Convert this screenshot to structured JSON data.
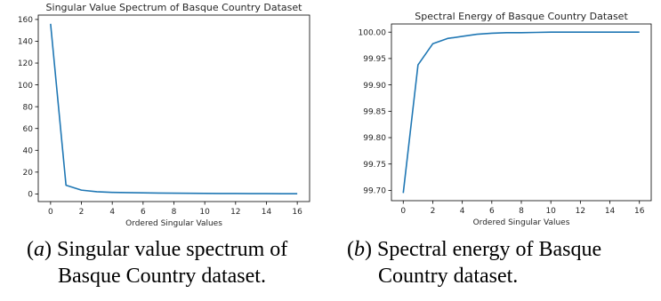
{
  "chart_data": [
    {
      "type": "line",
      "title": "Singular Value Spectrum of Basque Country Dataset",
      "xlabel": "Ordered Singular Values",
      "ylabel": "",
      "x": [
        0,
        1,
        2,
        3,
        4,
        5,
        6,
        7,
        8,
        9,
        10,
        11,
        12,
        13,
        14,
        15,
        16
      ],
      "series": [
        {
          "values": [
            156,
            8,
            3.5,
            2,
            1.4,
            1.2,
            1.0,
            0.8,
            0.7,
            0.6,
            0.5,
            0.4,
            0.35,
            0.3,
            0.25,
            0.2,
            0.15
          ]
        }
      ],
      "xlim": [
        -0.8,
        16.8
      ],
      "ylim": [
        -7,
        164
      ],
      "xticks": [
        0,
        2,
        4,
        6,
        8,
        10,
        12,
        14,
        16
      ],
      "yticks": [
        0,
        20,
        40,
        60,
        80,
        100,
        120,
        140,
        160
      ],
      "ytick_labels": [
        "0",
        "20",
        "40",
        "60",
        "80",
        "100",
        "120",
        "140",
        "160"
      ],
      "grid": false,
      "color": "#1f77b4"
    },
    {
      "type": "line",
      "title": "Spectral Energy of Basque Country Dataset",
      "xlabel": "Ordered Singular Values",
      "ylabel": "",
      "x": [
        0,
        1,
        2,
        3,
        4,
        5,
        6,
        7,
        8,
        9,
        10,
        11,
        12,
        13,
        14,
        15,
        16
      ],
      "series": [
        {
          "values": [
            99.695,
            99.938,
            99.978,
            99.988,
            99.992,
            99.996,
            99.998,
            99.999,
            99.999,
            99.9995,
            100.0,
            100.0,
            100.0,
            100.0,
            100.0,
            100.0,
            100.0
          ]
        }
      ],
      "xlim": [
        -0.8,
        16.8
      ],
      "ylim": [
        99.6805,
        100.0155
      ],
      "xticks": [
        0,
        2,
        4,
        6,
        8,
        10,
        12,
        14,
        16
      ],
      "yticks": [
        99.7,
        99.75,
        99.8,
        99.85,
        99.9,
        99.95,
        100.0
      ],
      "ytick_labels": [
        "99.70",
        "99.75",
        "99.80",
        "99.85",
        "99.90",
        "99.95",
        "100.00"
      ],
      "grid": false,
      "color": "#1f77b4"
    }
  ],
  "captions": {
    "a": {
      "label": "a",
      "line1": " Singular value spectrum of",
      "line2": "Basque Country dataset."
    },
    "b": {
      "label": "b",
      "line1": " Spectral energy of Basque",
      "line2": "Country dataset."
    }
  }
}
